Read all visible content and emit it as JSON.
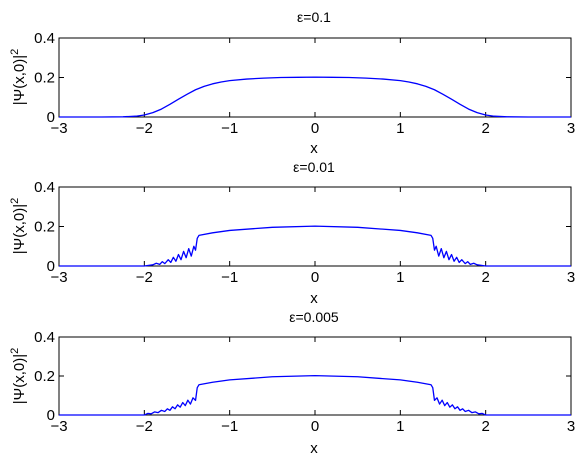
{
  "chart_data": [
    {
      "type": "line",
      "title": "ε=0.1",
      "xlabel": "x",
      "ylabel": "|Ψ(x,0)|",
      "ylabel_superscript": "2",
      "xlim": [
        -3,
        3
      ],
      "ylim": [
        0,
        0.4
      ],
      "xticks": [
        -3,
        -2,
        -1,
        0,
        1,
        2,
        3
      ],
      "yticks": [
        0,
        0.2,
        0.4
      ],
      "xtick_labels": [
        "−3",
        "−2",
        "−1",
        "0",
        "1",
        "2",
        "3"
      ],
      "ytick_labels": [
        "0",
        "0.2",
        "0.4"
      ],
      "grid": false,
      "line_color": "#0000ff",
      "series": [
        {
          "x": [
            -3.0,
            -2.5,
            -2.25,
            -2.1,
            -2.0,
            -1.9,
            -1.8,
            -1.7,
            -1.6,
            -1.5,
            -1.4,
            -1.3,
            -1.2,
            -1.1,
            -1.0,
            -0.8,
            -0.6,
            -0.4,
            -0.2,
            0.0,
            0.2,
            0.4,
            0.6,
            0.8,
            1.0,
            1.1,
            1.2,
            1.3,
            1.4,
            1.5,
            1.6,
            1.7,
            1.8,
            1.9,
            2.0,
            2.1,
            2.25,
            2.5,
            3.0
          ],
          "y": [
            0.0,
            0.0,
            0.001,
            0.004,
            0.01,
            0.022,
            0.04,
            0.064,
            0.09,
            0.115,
            0.138,
            0.155,
            0.168,
            0.177,
            0.184,
            0.192,
            0.197,
            0.2,
            0.201,
            0.202,
            0.201,
            0.2,
            0.197,
            0.192,
            0.184,
            0.177,
            0.168,
            0.155,
            0.138,
            0.115,
            0.09,
            0.064,
            0.04,
            0.022,
            0.01,
            0.004,
            0.001,
            0.0,
            0.0
          ]
        }
      ]
    },
    {
      "type": "line",
      "title": "ε=0.01",
      "xlabel": "x",
      "ylabel": "|Ψ(x,0)|",
      "ylabel_superscript": "2",
      "xlim": [
        -3,
        3
      ],
      "ylim": [
        0,
        0.4
      ],
      "xticks": [
        -3,
        -2,
        -1,
        0,
        1,
        2,
        3
      ],
      "yticks": [
        0,
        0.2,
        0.4
      ],
      "xtick_labels": [
        "−3",
        "−2",
        "−1",
        "0",
        "1",
        "2",
        "3"
      ],
      "ytick_labels": [
        "0",
        "0.2",
        "0.4"
      ],
      "grid": false,
      "line_color": "#0000ff",
      "series": [
        {
          "x": [
            -3.0,
            -2.1,
            -2.0,
            -1.94,
            -1.9,
            -1.86,
            -1.82,
            -1.79,
            -1.76,
            -1.72,
            -1.69,
            -1.66,
            -1.63,
            -1.6,
            -1.57,
            -1.54,
            -1.51,
            -1.48,
            -1.45,
            -1.42,
            -1.4,
            -1.38,
            -1.36,
            -1.2,
            -1.0,
            -0.5,
            0.0,
            0.5,
            1.0,
            1.2,
            1.36,
            1.38,
            1.4,
            1.42,
            1.45,
            1.48,
            1.51,
            1.54,
            1.57,
            1.6,
            1.63,
            1.66,
            1.69,
            1.72,
            1.76,
            1.79,
            1.82,
            1.86,
            1.9,
            1.94,
            2.0,
            2.1,
            3.0
          ],
          "y": [
            0.0,
            0.0,
            0.0,
            0.004,
            0.006,
            0.014,
            0.008,
            0.022,
            0.012,
            0.032,
            0.018,
            0.044,
            0.024,
            0.058,
            0.032,
            0.074,
            0.042,
            0.088,
            0.05,
            0.1,
            0.08,
            0.14,
            0.155,
            0.168,
            0.18,
            0.196,
            0.202,
            0.196,
            0.18,
            0.168,
            0.155,
            0.14,
            0.08,
            0.1,
            0.05,
            0.088,
            0.042,
            0.074,
            0.032,
            0.058,
            0.024,
            0.044,
            0.018,
            0.032,
            0.012,
            0.022,
            0.008,
            0.014,
            0.006,
            0.004,
            0.0,
            0.0,
            0.0
          ]
        }
      ]
    },
    {
      "type": "line",
      "title": "ε=0.005",
      "xlabel": "x",
      "ylabel": "|Ψ(x,0)|",
      "ylabel_superscript": "2",
      "xlim": [
        -3,
        3
      ],
      "ylim": [
        0,
        0.4
      ],
      "xticks": [
        -3,
        -2,
        -1,
        0,
        1,
        2,
        3
      ],
      "yticks": [
        0,
        0.2,
        0.4
      ],
      "xtick_labels": [
        "−3",
        "−2",
        "−1",
        "0",
        "1",
        "2",
        "3"
      ],
      "ytick_labels": [
        "0",
        "0.2",
        "0.4"
      ],
      "grid": false,
      "line_color": "#0000ff",
      "series": [
        {
          "x": [
            -3.0,
            -2.1,
            -2.0,
            -1.96,
            -1.92,
            -1.88,
            -1.84,
            -1.8,
            -1.76,
            -1.73,
            -1.7,
            -1.67,
            -1.64,
            -1.61,
            -1.58,
            -1.55,
            -1.52,
            -1.49,
            -1.46,
            -1.43,
            -1.4,
            -1.38,
            -1.36,
            -1.2,
            -1.0,
            -0.5,
            0.0,
            0.5,
            1.0,
            1.2,
            1.36,
            1.38,
            1.4,
            1.43,
            1.46,
            1.49,
            1.52,
            1.55,
            1.58,
            1.61,
            1.64,
            1.67,
            1.7,
            1.73,
            1.76,
            1.8,
            1.84,
            1.88,
            1.92,
            1.96,
            2.0,
            2.1,
            3.0
          ],
          "y": [
            0.0,
            0.0,
            0.0,
            0.008,
            0.006,
            0.016,
            0.012,
            0.024,
            0.018,
            0.032,
            0.024,
            0.042,
            0.032,
            0.052,
            0.04,
            0.064,
            0.048,
            0.076,
            0.056,
            0.088,
            0.075,
            0.14,
            0.155,
            0.168,
            0.18,
            0.196,
            0.202,
            0.196,
            0.18,
            0.168,
            0.155,
            0.14,
            0.075,
            0.088,
            0.056,
            0.076,
            0.048,
            0.064,
            0.04,
            0.052,
            0.032,
            0.042,
            0.024,
            0.032,
            0.018,
            0.024,
            0.012,
            0.016,
            0.006,
            0.008,
            0.0,
            0.0,
            0.0
          ]
        }
      ]
    }
  ]
}
